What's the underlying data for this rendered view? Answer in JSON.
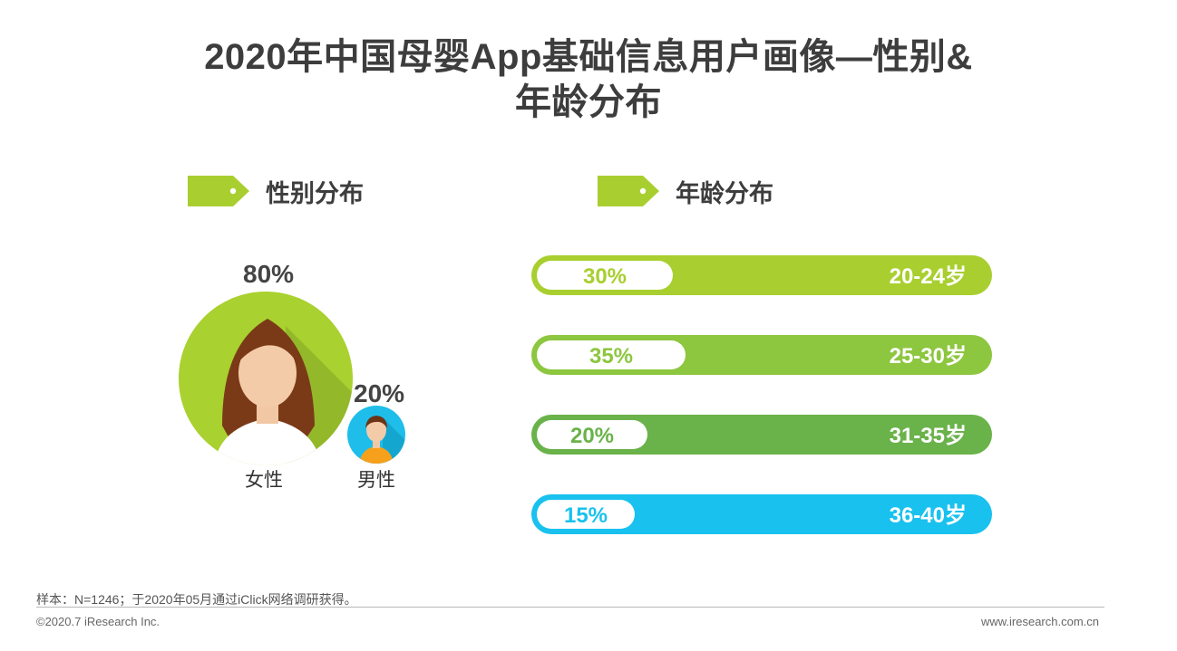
{
  "title_line1": "2020年中国母婴App基础信息用户画像—性别&",
  "title_line2": "年龄分布",
  "sections": {
    "gender": "性别分布",
    "age": "年龄分布"
  },
  "gender": {
    "female": {
      "label": "女性",
      "percent_text": "80%",
      "value": 80
    },
    "male": {
      "label": "男性",
      "percent_text": "20%",
      "value": 20
    }
  },
  "colors": {
    "tag_green": "#a8cf2f",
    "female_circle": "#a9d12f",
    "male_circle": "#1fbdea",
    "bar_20_24": "#a8cf2f",
    "bar_25_30": "#8dc63f",
    "bar_31_35": "#6ab24a",
    "bar_36_40": "#19c1ee"
  },
  "chart_data": {
    "type": "bar",
    "categories": [
      "20-24岁",
      "25-30岁",
      "31-35岁",
      "36-40岁"
    ],
    "values": [
      30,
      35,
      20,
      15
    ],
    "value_labels": [
      "30%",
      "35%",
      "20%",
      "15%"
    ],
    "bar_colors": [
      "#a8cf2f",
      "#8dc63f",
      "#6ab24a",
      "#19c1ee"
    ],
    "title": "年龄分布",
    "xlabel": "",
    "ylabel": "",
    "xlim": [
      0,
      100
    ],
    "grid": false,
    "legend": "none"
  },
  "footer": {
    "note": "样本：N=1246；于2020年05月通过iClick网络调研获得。",
    "copyright": "©2020.7 iResearch Inc.",
    "website": "www.iresearch.com.cn"
  }
}
